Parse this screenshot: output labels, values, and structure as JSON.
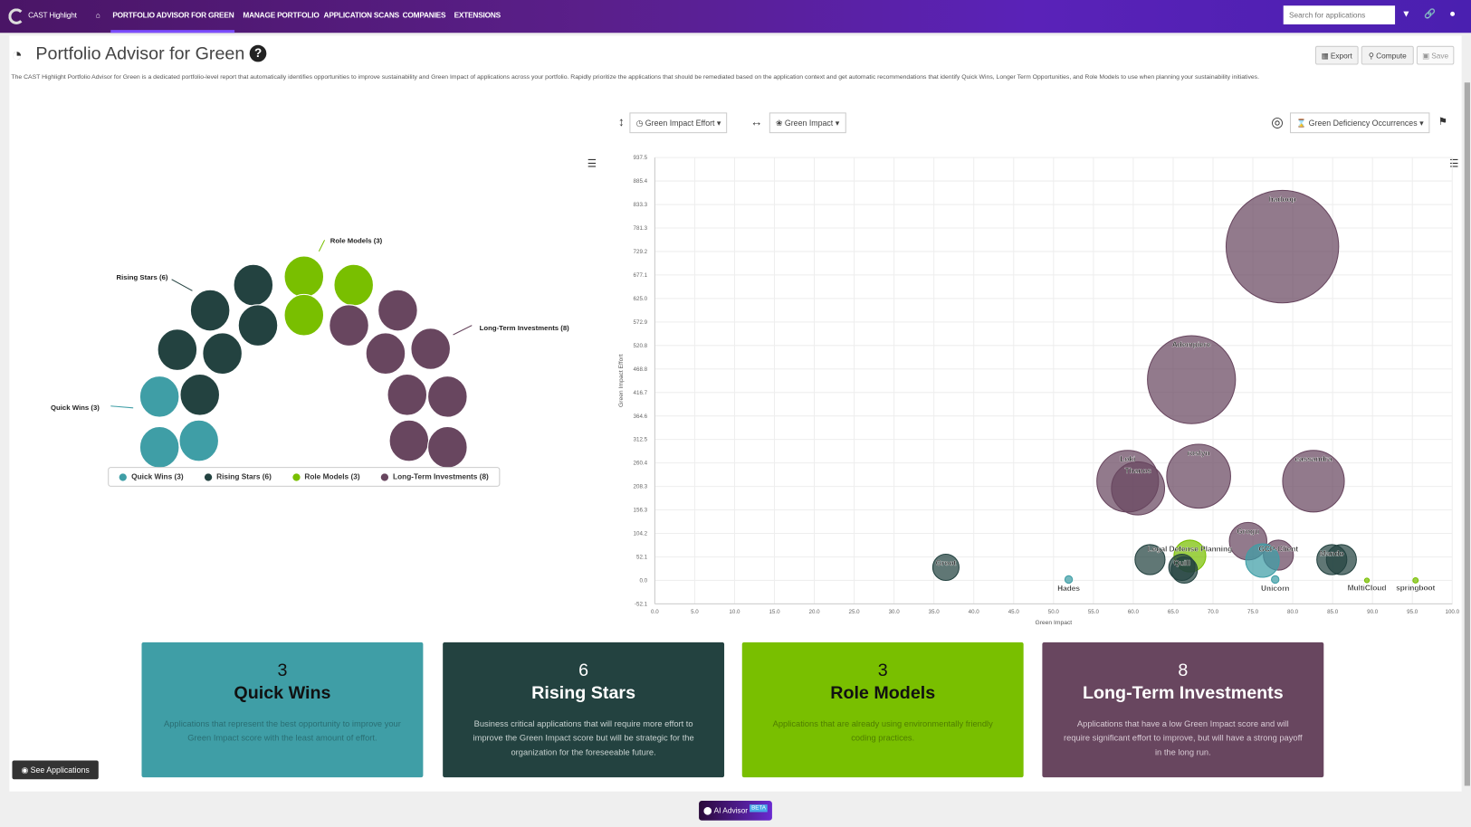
{
  "nav": {
    "brand": "CAST Highlight",
    "items": [
      "PORTFOLIO ADVISOR FOR GREEN",
      "MANAGE PORTFOLIO",
      "APPLICATION SCANS",
      "COMPANIES",
      "EXTENSIONS"
    ],
    "search_placeholder": "Search for applications"
  },
  "page": {
    "title": "Portfolio Advisor for Green",
    "description": "The CAST Highlight Portfolio Advisor for Green is a dedicated portfolio-level report that automatically identifies opportunities to improve sustainability and Green Impact of applications across your portfolio. Rapidly prioritize the applications that should be remediated based on the application context and get automatic recommendations that identify Quick Wins, Longer Term Opportunities, and Role Models to use when planning your sustainability initiatives.",
    "buttons": {
      "export": "Export",
      "compute": "Compute",
      "save": "Save"
    }
  },
  "selectors": {
    "y_axis": "Green Impact Effort",
    "x_axis": "Green Impact",
    "size": "Green Deficiency Occurrences"
  },
  "colors": {
    "quick": "#3f9ea6",
    "rising": "#234240",
    "role": "#79bf00",
    "long": "#68465f"
  },
  "groups": [
    {
      "key": "quick",
      "label": "Quick Wins (3)",
      "count": 3
    },
    {
      "key": "rising",
      "label": "Rising Stars (6)",
      "count": 6
    },
    {
      "key": "role",
      "label": "Role Models (3)",
      "count": 3
    },
    {
      "key": "long",
      "label": "Long-Term Investments (8)",
      "count": 8
    }
  ],
  "chart_data": {
    "type": "scatter",
    "subtype": "bubble",
    "xlabel": "Green Impact",
    "ylabel": "Green Impact Effort",
    "xlim": [
      0,
      100
    ],
    "ylim": [
      -52.1,
      937.5
    ],
    "xticks": [
      "0.0",
      "5.0",
      "10.0",
      "15.0",
      "20.0",
      "25.0",
      "30.0",
      "35.0",
      "40.0",
      "45.0",
      "50.0",
      "55.0",
      "60.0",
      "65.0",
      "70.0",
      "75.0",
      "80.0",
      "85.0",
      "90.0",
      "95.0",
      "100.0"
    ],
    "yticks": [
      "937.5",
      "885.4",
      "833.3",
      "781.3",
      "729.2",
      "677.1",
      "625.0",
      "572.9",
      "520.8",
      "468.8",
      "416.7",
      "364.6",
      "312.5",
      "260.4",
      "208.3",
      "156.3",
      "104.2",
      "52.1",
      "0.0",
      "-52.1"
    ],
    "grid": true,
    "points": [
      {
        "label": "hadoop",
        "group": "long",
        "x": 78.7,
        "y": 740,
        "z": 900
      },
      {
        "label": "Adempiere",
        "group": "long",
        "x": 67.3,
        "y": 445,
        "z": 550
      },
      {
        "label": "Loki",
        "group": "long",
        "x": 59.3,
        "y": 220,
        "z": 270
      },
      {
        "label": "Thanos",
        "group": "long",
        "x": 60.6,
        "y": 204,
        "z": 200
      },
      {
        "label": "roslyn",
        "group": "long",
        "x": 68.2,
        "y": 231,
        "z": 290
      },
      {
        "label": "cassandra",
        "group": "long",
        "x": 82.6,
        "y": 220,
        "z": 270
      },
      {
        "label": "Grogu",
        "group": "long",
        "x": 74.4,
        "y": 87,
        "z": 100
      },
      {
        "label": "GCP-Client",
        "group": "long",
        "x": 78.2,
        "y": 56,
        "z": 64
      },
      {
        "label": "",
        "group": "quick",
        "x": 76.2,
        "y": 44,
        "z": 80
      },
      {
        "label": "",
        "group": "rising",
        "x": 62.1,
        "y": 46,
        "z": 64
      },
      {
        "label": "Legal Defense Planning",
        "group": "role",
        "x": 67.1,
        "y": 54,
        "z": 72
      },
      {
        "label": "Quill",
        "group": "rising",
        "x": 66.1,
        "y": 29,
        "z": 49
      },
      {
        "label": "",
        "group": "rising",
        "x": 66.4,
        "y": 23,
        "z": 49
      },
      {
        "label": "Mando",
        "group": "rising",
        "x": 84.9,
        "y": 46,
        "z": 64
      },
      {
        "label": "",
        "group": "rising",
        "x": 86.1,
        "y": 46,
        "z": 64
      },
      {
        "label": "Groot",
        "group": "rising",
        "x": 36.5,
        "y": 29,
        "z": 49
      },
      {
        "label": "Hades",
        "group": "quick",
        "x": 51.9,
        "y": 2,
        "z": 4
      },
      {
        "label": "Unicorn",
        "group": "quick",
        "x": 77.8,
        "y": 2,
        "z": 4
      },
      {
        "label": "MultiCloud",
        "group": "role",
        "x": 89.3,
        "y": 0,
        "z": 1
      },
      {
        "label": "springboot",
        "group": "role",
        "x": 95.4,
        "y": 0,
        "z": 2
      }
    ]
  },
  "cards": [
    {
      "count": "3",
      "title": "Quick Wins",
      "desc": "Applications that represent the best opportunity to improve your Green Impact score with the least amount of effort."
    },
    {
      "count": "6",
      "title": "Rising Stars",
      "desc": "Business critical applications that will require more effort to improve the Green Impact score but will be strategic for the organization for the foreseeable future."
    },
    {
      "count": "3",
      "title": "Role Models",
      "desc": "Applications that are already using environmentally friendly coding practices."
    },
    {
      "count": "8",
      "title": "Long-Term Investments",
      "desc": "Applications that have a low Green Impact score and will require significant effort to improve, but will have a strong payoff in the long run."
    }
  ],
  "footer": {
    "see_applications": "See Applications",
    "ai_advisor": "AI Advisor",
    "beta": "BETA"
  }
}
